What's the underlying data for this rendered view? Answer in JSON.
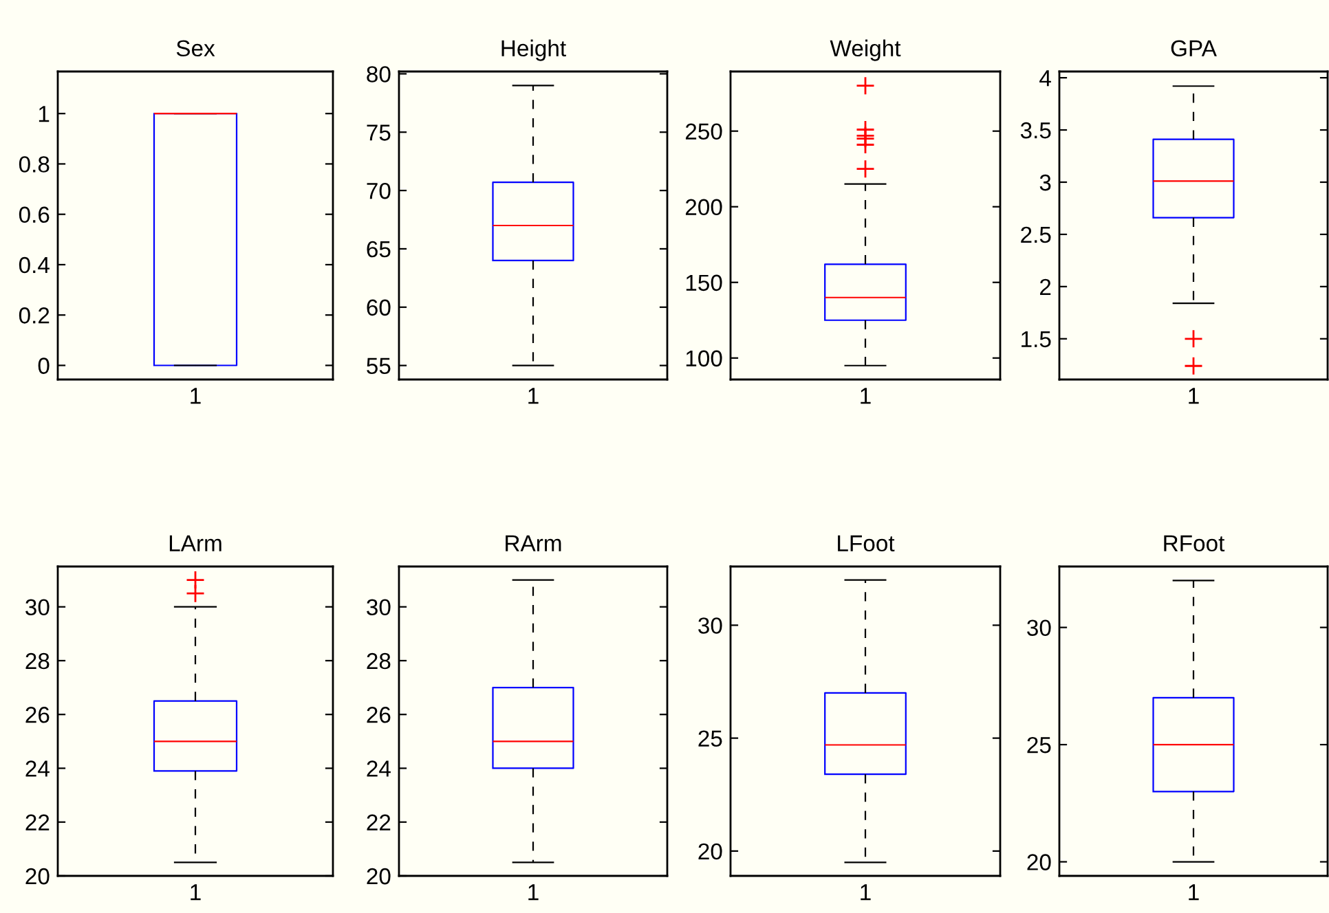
{
  "chart_data": [
    {
      "type": "box",
      "title": "Sex",
      "categories": [
        "1"
      ],
      "boxes": [
        {
          "low": 0,
          "q1": 0,
          "median": 1,
          "q3": 1,
          "high": 1
        }
      ],
      "ylim": [
        -0.056,
        1.167
      ],
      "yticks": [
        0,
        0.2,
        0.4,
        0.6,
        0.8,
        1
      ],
      "grid": false
    },
    {
      "type": "box",
      "title": "Height",
      "categories": [
        "1"
      ],
      "boxes": [
        {
          "low": 55,
          "q1": 64,
          "median": 67,
          "q3": 70.7,
          "high": 79
        }
      ],
      "ylim": [
        53.8,
        80.2
      ],
      "yticks": [
        55,
        60,
        65,
        70,
        75,
        80
      ],
      "grid": false
    },
    {
      "type": "box",
      "title": "Weight",
      "categories": [
        "1"
      ],
      "boxes": [
        {
          "low": 95,
          "q1": 125,
          "median": 140,
          "q3": 162,
          "high": 215,
          "outliers": [
            280,
            251,
            247,
            245,
            241,
            225
          ]
        }
      ],
      "ylim": [
        85.8,
        289.4
      ],
      "yticks": [
        100,
        150,
        200,
        250
      ],
      "grid": false
    },
    {
      "type": "box",
      "title": "GPA",
      "categories": [
        "1"
      ],
      "boxes": [
        {
          "low": 1.84,
          "q1": 2.66,
          "median": 3.01,
          "q3": 3.41,
          "high": 3.92,
          "outliers": [
            1.5,
            1.24
          ]
        }
      ],
      "ylim": [
        1.11,
        4.06
      ],
      "yticks": [
        1.5,
        2,
        2.5,
        3,
        3.5,
        4
      ],
      "grid": false
    },
    {
      "type": "box",
      "title": "LArm",
      "categories": [
        "1"
      ],
      "boxes": [
        {
          "low": 20.5,
          "q1": 23.9,
          "median": 25,
          "q3": 26.5,
          "high": 30,
          "outliers": [
            31,
            30.5
          ]
        }
      ],
      "ylim": [
        20,
        31.5
      ],
      "yticks": [
        20,
        22,
        24,
        26,
        28,
        30
      ],
      "grid": false
    },
    {
      "type": "box",
      "title": "RArm",
      "categories": [
        "1"
      ],
      "boxes": [
        {
          "low": 20.5,
          "q1": 24,
          "median": 25,
          "q3": 27,
          "high": 31
        }
      ],
      "ylim": [
        20,
        31.5
      ],
      "yticks": [
        20,
        22,
        24,
        26,
        28,
        30
      ],
      "grid": false
    },
    {
      "type": "box",
      "title": "LFoot",
      "categories": [
        "1"
      ],
      "boxes": [
        {
          "low": 19.5,
          "q1": 23.4,
          "median": 24.7,
          "q3": 27,
          "high": 32
        }
      ],
      "ylim": [
        18.9,
        32.6
      ],
      "yticks": [
        20,
        25,
        30
      ],
      "grid": false
    },
    {
      "type": "box",
      "title": "RFoot",
      "categories": [
        "1"
      ],
      "boxes": [
        {
          "low": 20,
          "q1": 23,
          "median": 25,
          "q3": 27,
          "high": 32
        }
      ],
      "ylim": [
        19.4,
        32.6
      ],
      "yticks": [
        20,
        25,
        30
      ],
      "grid": false
    }
  ]
}
